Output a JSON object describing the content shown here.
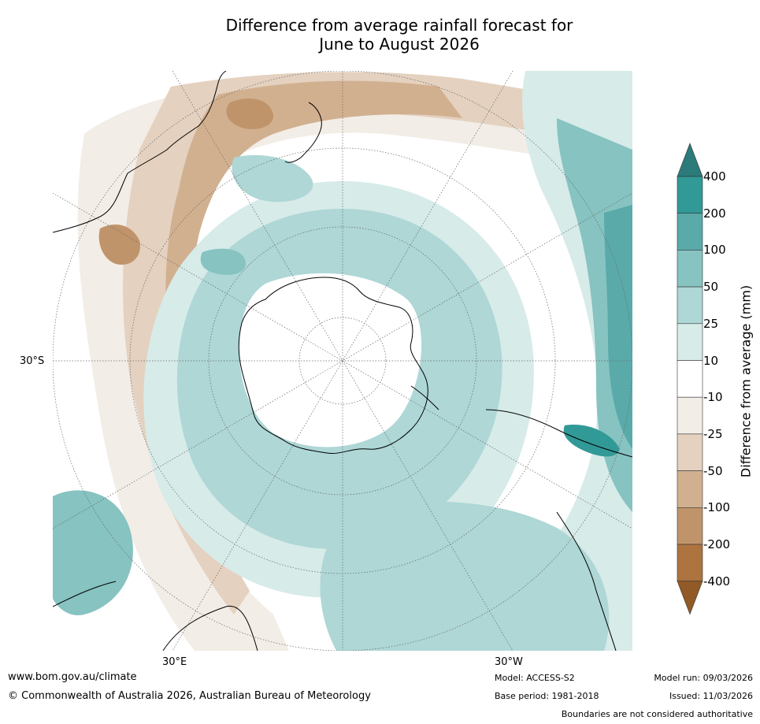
{
  "title": {
    "line1": "Difference from average rainfall forecast for",
    "line2": "June to August 2026"
  },
  "map": {
    "type": "polar-stereographic-south",
    "lat_label": "30°S",
    "lon_label_east": "30°E",
    "lon_label_west": "30°W"
  },
  "colorbar": {
    "axis_label": "Difference from average (mm)",
    "tick_labels": [
      "400",
      "200",
      "100",
      "50",
      "25",
      "10",
      "-10",
      "-25",
      "-50",
      "-100",
      "-200",
      "-400"
    ],
    "bins": [
      {
        "range": "> 400",
        "color": "#2a7b79"
      },
      {
        "range": "200 to 400",
        "color": "#319a97"
      },
      {
        "range": "100 to 200",
        "color": "#5aaaaa"
      },
      {
        "range": "50 to 100",
        "color": "#86c3c1"
      },
      {
        "range": "25 to 50",
        "color": "#aed7d6"
      },
      {
        "range": "10 to 25",
        "color": "#d7ebe9"
      },
      {
        "range": "-10 to 10",
        "color": "#ffffff"
      },
      {
        "range": "-25 to -10",
        "color": "#f2ede6"
      },
      {
        "range": "-50 to -25",
        "color": "#e4d1bf"
      },
      {
        "range": "-100 to -50",
        "color": "#d1b090"
      },
      {
        "range": "-200 to -100",
        "color": "#c0946a"
      },
      {
        "range": "-400 to -200",
        "color": "#ad7440"
      },
      {
        "range": "< -400",
        "color": "#925a26"
      }
    ]
  },
  "footer": {
    "website": "www.bom.gov.au/climate",
    "copyright": "© Commonwealth of Australia 2026, Australian Bureau of Meteorology",
    "model": "Model: ACCESS-S2",
    "base_period": "Base period: 1981-2018",
    "model_run": "Model run: 09/03/2026",
    "issued": "Issued: 11/03/2026",
    "disclaimer": "Boundaries are not considered authoritative"
  }
}
